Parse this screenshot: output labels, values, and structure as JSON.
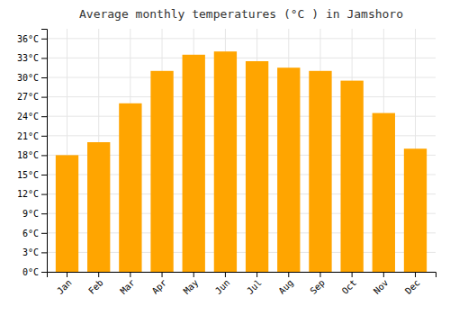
{
  "chart_data": {
    "type": "bar",
    "title": "Average monthly temperatures (°C ) in Jamshoro",
    "categories": [
      "Jan",
      "Feb",
      "Mar",
      "Apr",
      "May",
      "Jun",
      "Jul",
      "Aug",
      "Sep",
      "Oct",
      "Nov",
      "Dec"
    ],
    "values": [
      18,
      20,
      26,
      31,
      33.5,
      34,
      32.5,
      31.5,
      31,
      29.5,
      24.5,
      19
    ],
    "color": "#FFA500",
    "ylim": [
      0,
      37.5
    ],
    "yticks": [
      {
        "value": 0,
        "label": "0°C"
      },
      {
        "value": 3,
        "label": "3°C"
      },
      {
        "value": 6,
        "label": "6°C"
      },
      {
        "value": 9,
        "label": "9°C"
      },
      {
        "value": 12,
        "label": "12°C"
      },
      {
        "value": 15,
        "label": "15°C"
      },
      {
        "value": 18,
        "label": "18°C"
      },
      {
        "value": 21,
        "label": "21°C"
      },
      {
        "value": 24,
        "label": "24°C"
      },
      {
        "value": 27,
        "label": "27°C"
      },
      {
        "value": 30,
        "label": "30°C"
      },
      {
        "value": 33,
        "label": "33°C"
      },
      {
        "value": 36,
        "label": "36°C"
      }
    ],
    "grid": true
  }
}
